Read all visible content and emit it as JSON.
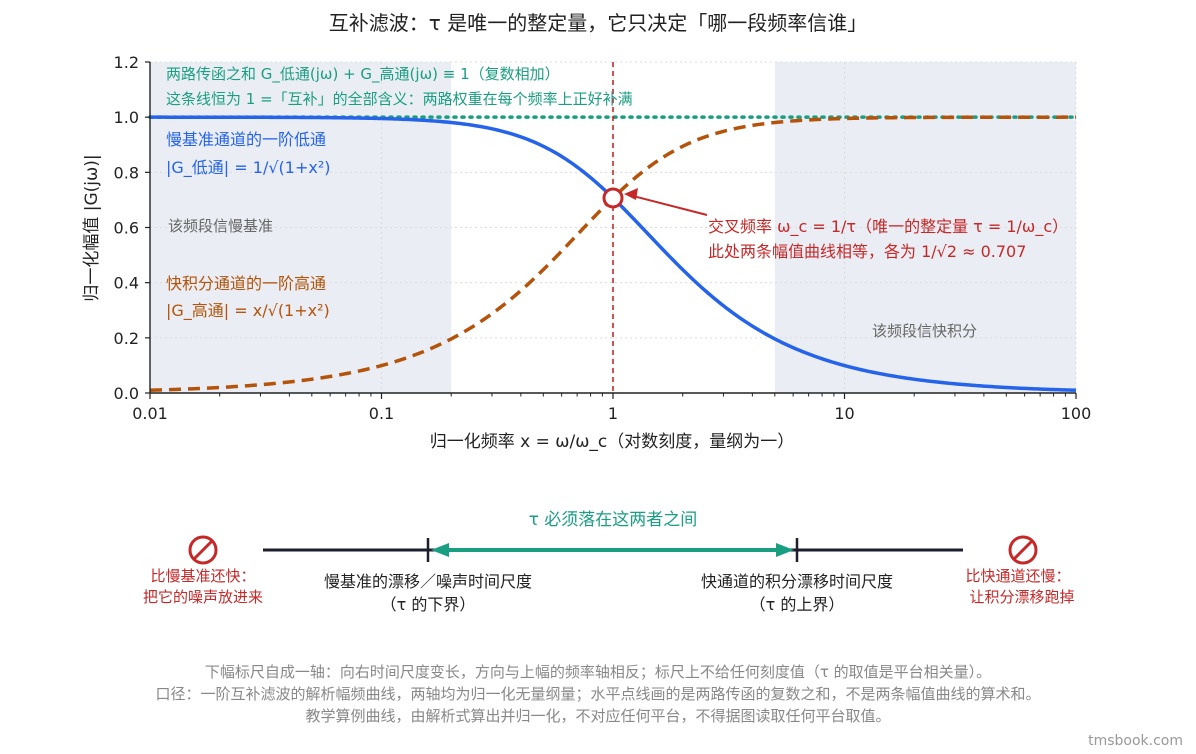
{
  "chart_data": {
    "type": "line",
    "title": "互补滤波：τ 是唯一的整定量，它只决定「哪一段频率信谁」",
    "xlabel": "归一化频率 x = ω/ω_c（对数刻度，量纲为一）",
    "ylabel": "归一化幅值 |G(jω)|",
    "xscale": "log",
    "xlim": [
      0.01,
      100
    ],
    "ylim": [
      0,
      1.2
    ],
    "xticks": [
      0.01,
      0.1,
      1,
      10,
      100
    ],
    "xtick_labels": [
      "0.01",
      "0.1",
      "1",
      "10",
      "100"
    ],
    "yticks": [
      0,
      0.2,
      0.4,
      0.6,
      0.8,
      1.0,
      1.2
    ],
    "ytick_labels": [
      "0.0",
      "0.2",
      "0.4",
      "0.6",
      "0.8",
      "1.0",
      "1.2"
    ],
    "grid": true,
    "shaded_regions": [
      {
        "x_from": 0.01,
        "x_to": 0.2,
        "label": "该频段信慢基准"
      },
      {
        "x_from": 5,
        "x_to": 100,
        "label": "该频段信快积分"
      }
    ],
    "series": [
      {
        "label_lines": [
          "慢基准通道的一阶低通",
          "|G_低通| = 1/√(1+x²)"
        ],
        "formula": "1/sqrt(1+x^2)",
        "style": "solid",
        "color": "#2563eb",
        "x": [
          0.01,
          0.1,
          0.2,
          0.5,
          1,
          2,
          5,
          10,
          100
        ],
        "y": [
          1.0,
          0.995,
          0.981,
          0.894,
          0.707,
          0.447,
          0.196,
          0.0995,
          0.01
        ]
      },
      {
        "label_lines": [
          "快积分通道的一阶高通",
          "|G_高通| = x/√(1+x²)"
        ],
        "formula": "x/sqrt(1+x^2)",
        "style": "dashed",
        "color": "#b45309",
        "x": [
          0.01,
          0.1,
          0.2,
          0.5,
          1,
          2,
          5,
          10,
          100
        ],
        "y": [
          0.01,
          0.0995,
          0.196,
          0.447,
          0.707,
          0.894,
          0.981,
          0.995,
          1.0
        ]
      },
      {
        "label_lines": [
          "两路传函之和  G_低通(jω) + G_高通(jω) ≡ 1（复数相加）",
          "这条线恒为 1 =「互补」的全部含义：两路权重在每个频率上正好补满"
        ],
        "style": "dotted",
        "color": "#1a9e82",
        "x": [
          0.01,
          100
        ],
        "y": [
          1.0,
          1.0
        ]
      }
    ],
    "crossover": {
      "x": 1,
      "y": 0.707,
      "annotation": [
        "交叉频率 ω_c = 1/τ（唯一的整定量 τ = 1/ω_c）",
        "此处两条幅值曲线相等，各为 1/√2 ≈ 0.707"
      ]
    }
  },
  "scale_bar": {
    "range_label": "τ 必须落在这两者之间",
    "left_label": [
      "慢基准的漂移／噪声时间尺度",
      "（τ 的下界）"
    ],
    "right_label": [
      "快通道的积分漂移时间尺度",
      "（τ 的上界）"
    ],
    "left_warning": [
      "比慢基准还快：",
      "把它的噪声放进来"
    ],
    "right_warning": [
      "比快通道还慢：",
      "让积分漂移跑掉"
    ]
  },
  "footnotes": [
    "下幅标尺自成一轴：向右时间尺度变长，方向与上幅的频率轴相反；标尺上不给任何刻度值（τ 的取值是平台相关量）。",
    "口径：一阶互补滤波的解析幅频曲线，两轴均为归一化无量纲量；水平点线画的是两路传函的复数之和，不是两条幅值曲线的算术和。",
    "教学算例曲线，由解析式算出并归一化，不对应任何平台，不得据图读取任何平台取值。"
  ],
  "watermark": "tmsbook.com",
  "colors": {
    "lowpass": "#2563eb",
    "highpass": "#b45309",
    "sum": "#1a9e82",
    "crossover": "#c62828",
    "shade": "#eaeef4",
    "axis": "#222222",
    "bar": "#1e1e2e",
    "muted": "#888888"
  }
}
